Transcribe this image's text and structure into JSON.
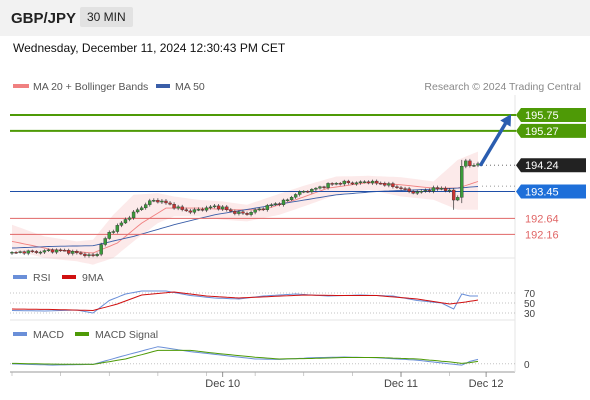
{
  "header": {
    "symbol": "GBP/JPY",
    "timeframe": "30 MIN"
  },
  "timestamp": "Wednesday, December 11, 2024 12:30:43 PM CET",
  "copyright": "Research © 2024 Trading Central",
  "colors": {
    "up": "#3a9a3a",
    "down": "#c83232",
    "ma20": "#f08080",
    "ma50": "#3a5ea8",
    "target": "#4e9a06",
    "pivot": "#1f4fa8",
    "support": "#e06666",
    "rsi": "#6a8fd8",
    "rsi9ma": "#d01010",
    "macd": "#6a8fd8",
    "macd_signal": "#4e9a06"
  },
  "chart_data": [
    {
      "type": "line",
      "panel": "price",
      "legend": [
        {
          "name": "MA 20 + Bollinger Bands",
          "color": "#f08080"
        },
        {
          "name": "MA 50",
          "color": "#3a5ea8"
        }
      ],
      "ylim": [
        191.45,
        196.35
      ],
      "levels": [
        {
          "value": 195.75,
          "label": "195.75",
          "kind": "target"
        },
        {
          "value": 195.27,
          "label": "195.27",
          "kind": "target"
        },
        {
          "value": 194.24,
          "label": "194.24",
          "kind": "last"
        },
        {
          "value": 193.45,
          "label": "193.45",
          "kind": "pivot"
        },
        {
          "value": 192.64,
          "label": "192.64",
          "kind": "support"
        },
        {
          "value": 192.16,
          "label": "192.16",
          "kind": "support"
        }
      ],
      "x_ticks": [
        {
          "label": "Dec 10",
          "index": 52
        },
        {
          "label": "Dec 11",
          "index": 96
        },
        {
          "label": "Dec 12",
          "index": 117
        }
      ],
      "anchors": [
        [
          0,
          191.6
        ],
        [
          3,
          191.64
        ],
        [
          6,
          191.63
        ],
        [
          9,
          191.67
        ],
        [
          12,
          191.68
        ],
        [
          15,
          191.62
        ],
        [
          18,
          191.55
        ],
        [
          20,
          191.5
        ],
        [
          21,
          191.6
        ],
        [
          22,
          191.85
        ],
        [
          24,
          192.2
        ],
        [
          26,
          192.4
        ],
        [
          28,
          192.6
        ],
        [
          30,
          192.8
        ],
        [
          32,
          192.98
        ],
        [
          34,
          193.15
        ],
        [
          36,
          193.18
        ],
        [
          38,
          193.1
        ],
        [
          40,
          193.0
        ],
        [
          42,
          192.9
        ],
        [
          44,
          192.85
        ],
        [
          46,
          192.9
        ],
        [
          48,
          192.95
        ],
        [
          50,
          193.0
        ],
        [
          52,
          192.95
        ],
        [
          54,
          192.85
        ],
        [
          56,
          192.8
        ],
        [
          58,
          192.78
        ],
        [
          60,
          192.88
        ],
        [
          62,
          192.95
        ],
        [
          64,
          193.05
        ],
        [
          66,
          193.1
        ],
        [
          68,
          193.2
        ],
        [
          70,
          193.38
        ],
        [
          72,
          193.45
        ],
        [
          74,
          193.5
        ],
        [
          76,
          193.58
        ],
        [
          78,
          193.65
        ],
        [
          80,
          193.7
        ],
        [
          82,
          193.72
        ],
        [
          84,
          193.7
        ],
        [
          86,
          193.72
        ],
        [
          88,
          193.75
        ],
        [
          90,
          193.7
        ],
        [
          92,
          193.68
        ],
        [
          94,
          193.6
        ],
        [
          96,
          193.55
        ],
        [
          98,
          193.45
        ],
        [
          100,
          193.42
        ],
        [
          102,
          193.48
        ],
        [
          104,
          193.52
        ],
        [
          106,
          193.55
        ],
        [
          108,
          193.45
        ],
        [
          109,
          193.2
        ],
        [
          110,
          193.3
        ],
        [
          111,
          194.2
        ],
        [
          112,
          194.35
        ],
        [
          113,
          194.22
        ],
        [
          114,
          194.28
        ],
        [
          115,
          194.24
        ]
      ],
      "bollinger": {
        "upper": [
          [
            0,
            192.45
          ],
          [
            8,
            192.1
          ],
          [
            16,
            191.95
          ],
          [
            20,
            192.0
          ],
          [
            25,
            192.75
          ],
          [
            30,
            193.35
          ],
          [
            36,
            193.4
          ],
          [
            40,
            193.3
          ],
          [
            46,
            193.2
          ],
          [
            52,
            193.15
          ],
          [
            58,
            193.05
          ],
          [
            66,
            193.38
          ],
          [
            72,
            193.62
          ],
          [
            80,
            193.9
          ],
          [
            88,
            193.92
          ],
          [
            96,
            193.88
          ],
          [
            104,
            193.75
          ],
          [
            110,
            194.4
          ],
          [
            115,
            194.65
          ]
        ],
        "lower": [
          [
            0,
            191.7
          ],
          [
            8,
            191.45
          ],
          [
            16,
            191.35
          ],
          [
            20,
            191.25
          ],
          [
            25,
            191.45
          ],
          [
            30,
            191.95
          ],
          [
            36,
            192.5
          ],
          [
            40,
            192.7
          ],
          [
            46,
            192.7
          ],
          [
            52,
            192.6
          ],
          [
            58,
            192.55
          ],
          [
            66,
            192.75
          ],
          [
            72,
            193.0
          ],
          [
            80,
            193.35
          ],
          [
            88,
            193.5
          ],
          [
            96,
            193.3
          ],
          [
            104,
            193.2
          ],
          [
            110,
            192.9
          ],
          [
            115,
            192.9
          ]
        ]
      },
      "ma20": [
        [
          0,
          191.95
        ],
        [
          10,
          191.7
        ],
        [
          20,
          191.6
        ],
        [
          26,
          191.9
        ],
        [
          32,
          192.5
        ],
        [
          38,
          192.95
        ],
        [
          46,
          192.95
        ],
        [
          54,
          192.9
        ],
        [
          62,
          192.9
        ],
        [
          70,
          193.2
        ],
        [
          78,
          193.55
        ],
        [
          88,
          193.72
        ],
        [
          96,
          193.65
        ],
        [
          104,
          193.55
        ],
        [
          110,
          193.55
        ],
        [
          115,
          193.75
        ]
      ],
      "ma50": [
        [
          0,
          191.75
        ],
        [
          10,
          191.8
        ],
        [
          20,
          191.82
        ],
        [
          30,
          192.1
        ],
        [
          40,
          192.45
        ],
        [
          50,
          192.75
        ],
        [
          60,
          192.95
        ],
        [
          70,
          193.15
        ],
        [
          80,
          193.35
        ],
        [
          90,
          193.45
        ],
        [
          100,
          193.5
        ],
        [
          110,
          193.55
        ],
        [
          115,
          193.6
        ]
      ]
    },
    {
      "type": "line",
      "panel": "rsi",
      "legend": [
        {
          "name": "RSI",
          "color": "#6a8fd8"
        },
        {
          "name": "9MA",
          "color": "#d01010"
        }
      ],
      "ylim": [
        20,
        80
      ],
      "levels": [
        {
          "value": 70,
          "label": "70"
        },
        {
          "value": 50,
          "label": "50"
        },
        {
          "value": 30,
          "label": "30"
        }
      ],
      "rsi": [
        [
          0,
          35
        ],
        [
          8,
          34
        ],
        [
          16,
          36
        ],
        [
          20,
          30
        ],
        [
          24,
          55
        ],
        [
          28,
          68
        ],
        [
          32,
          74
        ],
        [
          38,
          74
        ],
        [
          44,
          65
        ],
        [
          50,
          60
        ],
        [
          56,
          58
        ],
        [
          62,
          64
        ],
        [
          70,
          68
        ],
        [
          78,
          64
        ],
        [
          86,
          66
        ],
        [
          94,
          64
        ],
        [
          100,
          55
        ],
        [
          106,
          50
        ],
        [
          109,
          38
        ],
        [
          111,
          68
        ],
        [
          113,
          64
        ],
        [
          115,
          64
        ]
      ],
      "rsi_ma": [
        [
          0,
          38
        ],
        [
          10,
          37
        ],
        [
          20,
          35
        ],
        [
          26,
          48
        ],
        [
          32,
          66
        ],
        [
          40,
          72
        ],
        [
          48,
          64
        ],
        [
          56,
          60
        ],
        [
          64,
          63
        ],
        [
          72,
          66
        ],
        [
          80,
          65
        ],
        [
          90,
          65
        ],
        [
          100,
          58
        ],
        [
          108,
          48
        ],
        [
          112,
          52
        ],
        [
          115,
          56
        ]
      ]
    },
    {
      "type": "line",
      "panel": "macd",
      "legend": [
        {
          "name": "MACD",
          "color": "#6a8fd8"
        },
        {
          "name": "MACD Signal",
          "color": "#4e9a06"
        }
      ],
      "ylim": [
        -0.25,
        0.85
      ],
      "levels": [
        {
          "value": 0,
          "label": "0"
        }
      ],
      "macd": [
        [
          0,
          0.0
        ],
        [
          10,
          -0.05
        ],
        [
          20,
          -0.02
        ],
        [
          28,
          0.35
        ],
        [
          36,
          0.7
        ],
        [
          44,
          0.5
        ],
        [
          52,
          0.35
        ],
        [
          60,
          0.2
        ],
        [
          66,
          0.18
        ],
        [
          74,
          0.25
        ],
        [
          82,
          0.28
        ],
        [
          90,
          0.25
        ],
        [
          100,
          0.15
        ],
        [
          108,
          0.0
        ],
        [
          111,
          -0.05
        ],
        [
          113,
          0.1
        ],
        [
          115,
          0.18
        ]
      ],
      "signal": [
        [
          0,
          0.02
        ],
        [
          10,
          -0.01
        ],
        [
          20,
          -0.02
        ],
        [
          28,
          0.2
        ],
        [
          36,
          0.55
        ],
        [
          44,
          0.55
        ],
        [
          52,
          0.4
        ],
        [
          60,
          0.27
        ],
        [
          66,
          0.2
        ],
        [
          74,
          0.22
        ],
        [
          82,
          0.26
        ],
        [
          90,
          0.26
        ],
        [
          100,
          0.2
        ],
        [
          108,
          0.08
        ],
        [
          111,
          0.02
        ],
        [
          113,
          0.05
        ],
        [
          115,
          0.1
        ]
      ]
    }
  ]
}
